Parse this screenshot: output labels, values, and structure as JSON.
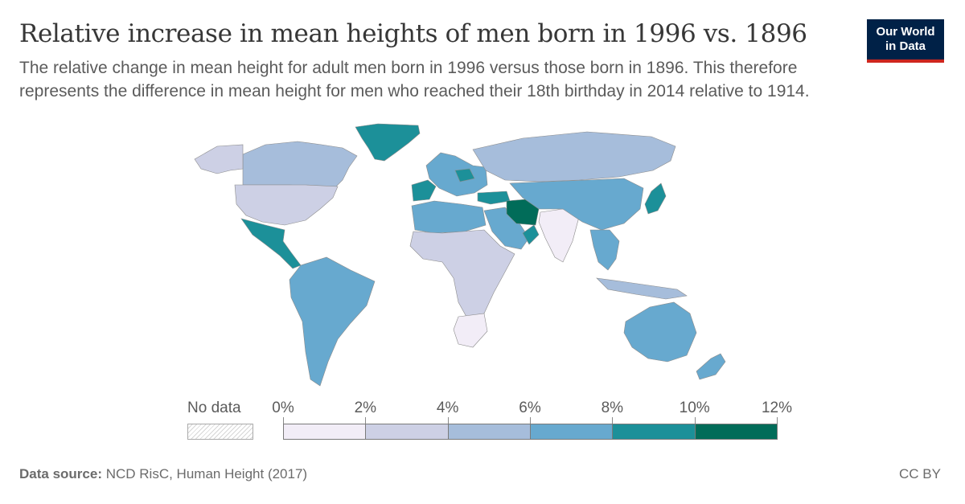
{
  "header": {
    "title": "Relative increase in mean heights of men born in 1996 vs. 1896",
    "subtitle": "The relative change in mean height for adult men born in 1996 versus those born in 1896. This therefore represents the difference in mean height for men who reached their 18th birthday in 2014 relative to 1914."
  },
  "logo": {
    "line1": "Our World",
    "line2": "in Data",
    "bg": "#002147",
    "accent": "#ce261e"
  },
  "legend": {
    "no_data_label": "No data",
    "ticks": [
      "0%",
      "2%",
      "4%",
      "6%",
      "8%",
      "10%",
      "12%"
    ],
    "bins": [
      {
        "from": 0,
        "to": 2,
        "color": "#f2edf7"
      },
      {
        "from": 2,
        "to": 4,
        "color": "#cdd0e5"
      },
      {
        "from": 4,
        "to": 6,
        "color": "#a6bddb"
      },
      {
        "from": 6,
        "to": 8,
        "color": "#67a9cf"
      },
      {
        "from": 8,
        "to": 10,
        "color": "#1c9099"
      },
      {
        "from": 10,
        "to": 12,
        "color": "#016c59"
      }
    ]
  },
  "map": {
    "regions": [
      {
        "name": "Greenland",
        "bin": 4
      },
      {
        "name": "Canada",
        "bin": 2
      },
      {
        "name": "Alaska",
        "bin": 1
      },
      {
        "name": "United States",
        "bin": 1
      },
      {
        "name": "Mexico & Central America",
        "bin": 4
      },
      {
        "name": "South America",
        "bin": 3
      },
      {
        "name": "Iberia",
        "bin": 4
      },
      {
        "name": "Western & Central Europe",
        "bin": 3
      },
      {
        "name": "Poland",
        "bin": 4
      },
      {
        "name": "Russia",
        "bin": 2
      },
      {
        "name": "North Africa",
        "bin": 3
      },
      {
        "name": "Middle East",
        "bin": 3
      },
      {
        "name": "Turkey",
        "bin": 4
      },
      {
        "name": "Iran",
        "bin": 5
      },
      {
        "name": "Oman",
        "bin": 4
      },
      {
        "name": "Sub-Saharan Africa",
        "bin": 1
      },
      {
        "name": "South Africa",
        "bin": 0
      },
      {
        "name": "India",
        "bin": 0
      },
      {
        "name": "China & Central Asia",
        "bin": 3
      },
      {
        "name": "Japan",
        "bin": 4
      },
      {
        "name": "Southeast Asia",
        "bin": 3
      },
      {
        "name": "Indonesia",
        "bin": 2
      },
      {
        "name": "Australia",
        "bin": 3
      },
      {
        "name": "New Zealand",
        "bin": 3
      }
    ]
  },
  "footer": {
    "source_label": "Data source:",
    "source_text": "NCD RisC, Human Height (2017)",
    "license": "CC BY"
  }
}
